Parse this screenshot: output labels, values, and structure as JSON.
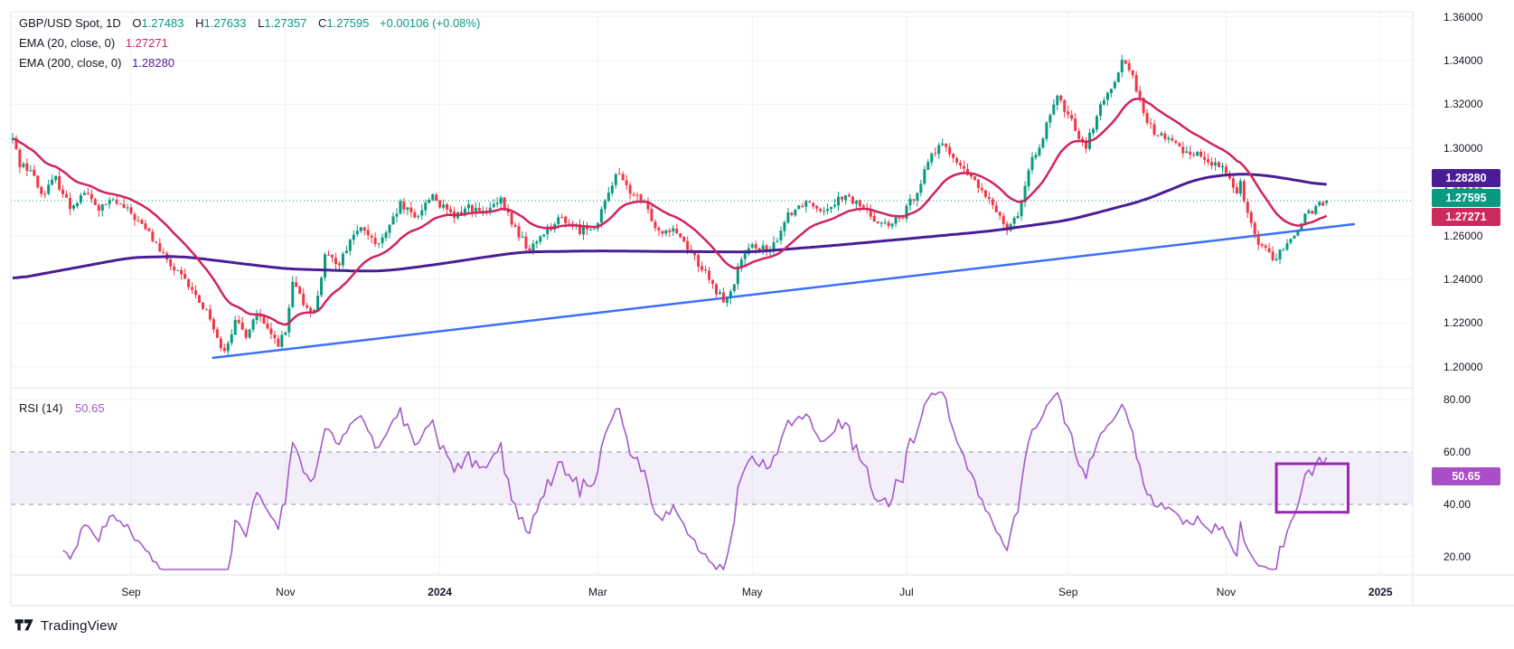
{
  "header": {
    "title": "GBP/USD Spot, 1D",
    "o_label": "O",
    "o_value": "1.27483",
    "h_label": "H",
    "h_value": "1.27633",
    "l_label": "L",
    "l_value": "1.27357",
    "c_label": "C",
    "c_value": "1.27595",
    "change": "+0.00106 (+0.08%)",
    "ema20_label": "EMA (20, close, 0)",
    "ema20_value": "1.27271",
    "ema200_label": "EMA (200, close, 0)",
    "ema200_value": "1.28280",
    "rsi_label": "RSI (14)",
    "rsi_value": "50.65"
  },
  "footer": {
    "brand": "TradingView"
  },
  "badges": {
    "ema200": {
      "text": "1.28280",
      "color": "#4a1d96"
    },
    "close": {
      "text": "1.27595",
      "color": "#089981"
    },
    "ema20": {
      "text": "1.27271",
      "color": "#cc2a5b"
    },
    "rsi": {
      "text": "50.65",
      "color": "#a94ec6"
    }
  },
  "colors": {
    "up": "#089981",
    "down": "#f23645",
    "ema20": "#d1235f",
    "ema200": "#4a1d96",
    "rsi": "#a45ac8",
    "trendline": "#3b6ffe",
    "rect": "#9c27b0",
    "close_line": "#089981",
    "grid": "#f0f2f6",
    "border": "#e0e3eb",
    "dash_band": "#9094a3"
  },
  "chart_data": {
    "type": "candlestick",
    "symbol": "GBP/USD Spot",
    "interval": "1D",
    "title": "GBP/USD Spot, 1D with EMA(20), EMA(200) and RSI(14)",
    "bars_total": 367,
    "last_bar": {
      "open": 1.27483,
      "high": 1.27633,
      "low": 1.27357,
      "close": 1.27595,
      "change": 0.00106,
      "change_pct": 0.08
    },
    "price_axis": [
      {
        "label": "1.36000",
        "value": 1.36
      },
      {
        "label": "1.34000",
        "value": 1.34
      },
      {
        "label": "1.32000",
        "value": 1.32
      },
      {
        "label": "1.30000",
        "value": 1.3
      },
      {
        "label": "1.28000",
        "value": 1.28
      },
      {
        "label": "1.26000",
        "value": 1.26
      },
      {
        "label": "1.24000",
        "value": 1.24
      },
      {
        "label": "1.22000",
        "value": 1.22
      },
      {
        "label": "1.20000",
        "value": 1.2
      }
    ],
    "rsi_axis": [
      {
        "label": "80.00",
        "value": 80
      },
      {
        "label": "60.00",
        "value": 60
      },
      {
        "label": "40.00",
        "value": 40
      },
      {
        "label": "20.00",
        "value": 20
      }
    ],
    "time_axis": [
      {
        "label": "Sep",
        "bar": 33,
        "bold": false
      },
      {
        "label": "Nov",
        "bar": 76,
        "bold": false
      },
      {
        "label": "2024",
        "bar": 119,
        "bold": true
      },
      {
        "label": "Mar",
        "bar": 163,
        "bold": false
      },
      {
        "label": "May",
        "bar": 206,
        "bold": false
      },
      {
        "label": "Jul",
        "bar": 249,
        "bold": false
      },
      {
        "label": "Sep",
        "bar": 294,
        "bold": false
      },
      {
        "label": "Nov",
        "bar": 338,
        "bold": false
      },
      {
        "label": "2025",
        "bar": 381,
        "bold": true
      }
    ],
    "indicators": {
      "ema20": {
        "period": 20,
        "last": 1.27271
      },
      "ema200": {
        "period": 200,
        "last": 1.2828
      },
      "rsi": {
        "period": 14,
        "last": 50.65,
        "overbought": 60,
        "oversold": 40
      }
    },
    "price_path": [
      [
        0,
        1.304
      ],
      [
        2,
        1.293
      ],
      [
        5,
        1.29
      ],
      [
        8,
        1.279
      ],
      [
        12,
        1.286
      ],
      [
        16,
        1.273
      ],
      [
        20,
        1.28
      ],
      [
        24,
        1.272
      ],
      [
        28,
        1.276
      ],
      [
        33,
        1.27
      ],
      [
        38,
        1.261
      ],
      [
        43,
        1.248
      ],
      [
        48,
        1.239
      ],
      [
        52,
        1.23
      ],
      [
        55,
        1.223
      ],
      [
        57,
        1.212
      ],
      [
        59,
        1.2085
      ],
      [
        62,
        1.22
      ],
      [
        65,
        1.215
      ],
      [
        68,
        1.2245
      ],
      [
        71,
        1.216
      ],
      [
        74,
        1.211
      ],
      [
        76,
        1.215
      ],
      [
        78,
        1.238
      ],
      [
        81,
        1.229
      ],
      [
        84,
        1.225
      ],
      [
        87,
        1.25
      ],
      [
        91,
        1.248
      ],
      [
        95,
        1.261
      ],
      [
        98,
        1.263
      ],
      [
        101,
        1.255
      ],
      [
        104,
        1.26
      ],
      [
        108,
        1.274
      ],
      [
        112,
        1.268
      ],
      [
        117,
        1.279
      ],
      [
        119,
        1.274
      ],
      [
        123,
        1.268
      ],
      [
        127,
        1.2735
      ],
      [
        131,
        1.27
      ],
      [
        136,
        1.2755
      ],
      [
        140,
        1.263
      ],
      [
        144,
        1.253
      ],
      [
        148,
        1.262
      ],
      [
        153,
        1.268
      ],
      [
        158,
        1.2625
      ],
      [
        163,
        1.2655
      ],
      [
        168,
        1.289
      ],
      [
        172,
        1.28
      ],
      [
        176,
        1.274
      ],
      [
        180,
        1.262
      ],
      [
        184,
        1.264
      ],
      [
        188,
        1.255
      ],
      [
        192,
        1.245
      ],
      [
        196,
        1.234
      ],
      [
        199,
        1.23
      ],
      [
        203,
        1.249
      ],
      [
        207,
        1.256
      ],
      [
        211,
        1.252
      ],
      [
        216,
        1.27
      ],
      [
        221,
        1.276
      ],
      [
        226,
        1.272
      ],
      [
        231,
        1.278
      ],
      [
        236,
        1.274
      ],
      [
        240,
        1.268
      ],
      [
        244,
        1.264
      ],
      [
        248,
        1.269
      ],
      [
        252,
        1.281
      ],
      [
        256,
        1.298
      ],
      [
        260,
        1.301
      ],
      [
        264,
        1.291
      ],
      [
        268,
        1.285
      ],
      [
        271,
        1.277
      ],
      [
        274,
        1.272
      ],
      [
        277,
        1.264
      ],
      [
        280,
        1.27
      ],
      [
        284,
        1.294
      ],
      [
        288,
        1.31
      ],
      [
        291,
        1.323
      ],
      [
        294,
        1.315
      ],
      [
        297,
        1.306
      ],
      [
        299,
        1.301
      ],
      [
        302,
        1.315
      ],
      [
        306,
        1.328
      ],
      [
        309,
        1.34
      ],
      [
        312,
        1.334
      ],
      [
        315,
        1.315
      ],
      [
        318,
        1.307
      ],
      [
        322,
        1.304
      ],
      [
        326,
        1.299
      ],
      [
        330,
        1.2975
      ],
      [
        334,
        1.293
      ],
      [
        337,
        1.29
      ],
      [
        339,
        1.288
      ],
      [
        341,
        1.279
      ],
      [
        342,
        1.285
      ],
      [
        344,
        1.27
      ],
      [
        347,
        1.257
      ],
      [
        350,
        1.252
      ],
      [
        352,
        1.249
      ],
      [
        354,
        1.2545
      ],
      [
        356,
        1.257
      ],
      [
        358,
        1.262
      ],
      [
        360,
        1.27
      ],
      [
        361,
        1.2715
      ],
      [
        362,
        1.2695
      ],
      [
        363,
        1.273
      ],
      [
        364,
        1.275
      ],
      [
        365,
        1.2735
      ],
      [
        366,
        1.27595
      ]
    ],
    "ema200_path": [
      [
        0,
        1.24
      ],
      [
        33,
        1.25
      ],
      [
        47,
        1.2505
      ],
      [
        76,
        1.2448
      ],
      [
        98,
        1.2437
      ],
      [
        105,
        1.244
      ],
      [
        119,
        1.247
      ],
      [
        133,
        1.2505
      ],
      [
        142,
        1.2525
      ],
      [
        163,
        1.253
      ],
      [
        184,
        1.2527
      ],
      [
        206,
        1.2525
      ],
      [
        229,
        1.2555
      ],
      [
        249,
        1.2585
      ],
      [
        272,
        1.262
      ],
      [
        294,
        1.267
      ],
      [
        315,
        1.276
      ],
      [
        330,
        1.286
      ],
      [
        340,
        1.2882
      ],
      [
        348,
        1.2878
      ],
      [
        358,
        1.2852
      ],
      [
        366,
        1.2828
      ]
    ],
    "trendline": {
      "from_bar": 55.8,
      "from_price": 1.2041,
      "to_bar": 373.6,
      "to_price": 1.2652
    },
    "rsi_rectangle": {
      "from_bar": 352,
      "to_bar": 372,
      "rsi_low": 37,
      "rsi_high": 55.5
    }
  }
}
